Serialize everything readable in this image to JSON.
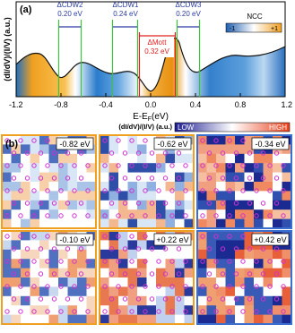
{
  "panel_a": {
    "label": "(a)",
    "y_label": "(dI/dV)/(I/V) (a.u.)",
    "x_label": "E-E",
    "x_label_sub": "F",
    "x_label_unit": "(eV)",
    "x_ticks": [
      "-1.2",
      "-0.8",
      "-0.4",
      "0.0",
      "0.4",
      "0.8",
      "1.2"
    ],
    "colorbar": {
      "title": "NCC",
      "min": "-1",
      "max": "+1"
    },
    "annotations": [
      {
        "name": "ΔCDW2",
        "value": "0.20 eV"
      },
      {
        "name": "ΔCDW1",
        "value": "0.24 eV"
      },
      {
        "name": "ΔCDW3",
        "value": "0.20 eV"
      },
      {
        "name": "ΔMott",
        "value": "0.32 eV"
      }
    ]
  },
  "panel_b": {
    "label": "(b)",
    "colorbar": {
      "title": "(dI/dV)/(I/V) (a.u.)",
      "low": "LOW",
      "high": "HIGH"
    },
    "maps": [
      {
        "energy": "-0.82 eV"
      },
      {
        "energy": "-0.62 eV"
      },
      {
        "energy": "-0.34 eV"
      },
      {
        "energy": "-0.10 eV"
      },
      {
        "energy": "+0.22 eV"
      },
      {
        "energy": "+0.42 eV"
      }
    ]
  }
}
